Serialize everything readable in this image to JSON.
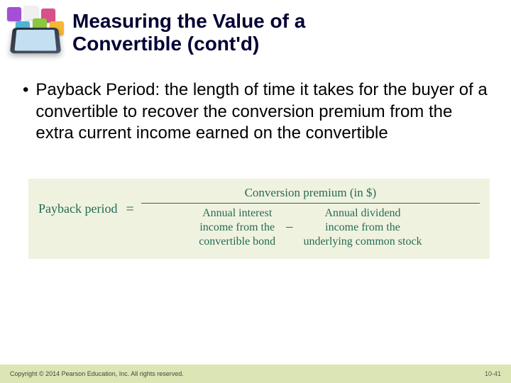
{
  "header": {
    "title_line1": "Measuring the Value of a",
    "title_line2": "Convertible (cont'd)"
  },
  "bullet": {
    "term": "Payback Period",
    "definition": ": the length of time it takes for the buyer of a convertible to recover the conversion premium from the extra current income earned on the convertible"
  },
  "formula": {
    "lhs": "Payback period",
    "numerator": "Conversion premium (in $)",
    "denom_left_l1": "Annual interest",
    "denom_left_l2": "income from the",
    "denom_left_l3": "convertible bond",
    "denom_right_l1": "Annual dividend",
    "denom_right_l2": "income from the",
    "denom_right_l3": "underlying common stock",
    "colors": {
      "text": "#246b55",
      "background": "#f0f2e0"
    }
  },
  "footer": {
    "copyright": "Copyright © 2014 Pearson Education, Inc. All rights reserved.",
    "page": "10-41",
    "background": "#dbe6b4"
  },
  "icons": {
    "tiles": [
      "#a44fd4",
      "#f0f0f0",
      "#d94f8c",
      "#4fb3d9",
      "#8cc63f",
      "#f7b733"
    ]
  }
}
